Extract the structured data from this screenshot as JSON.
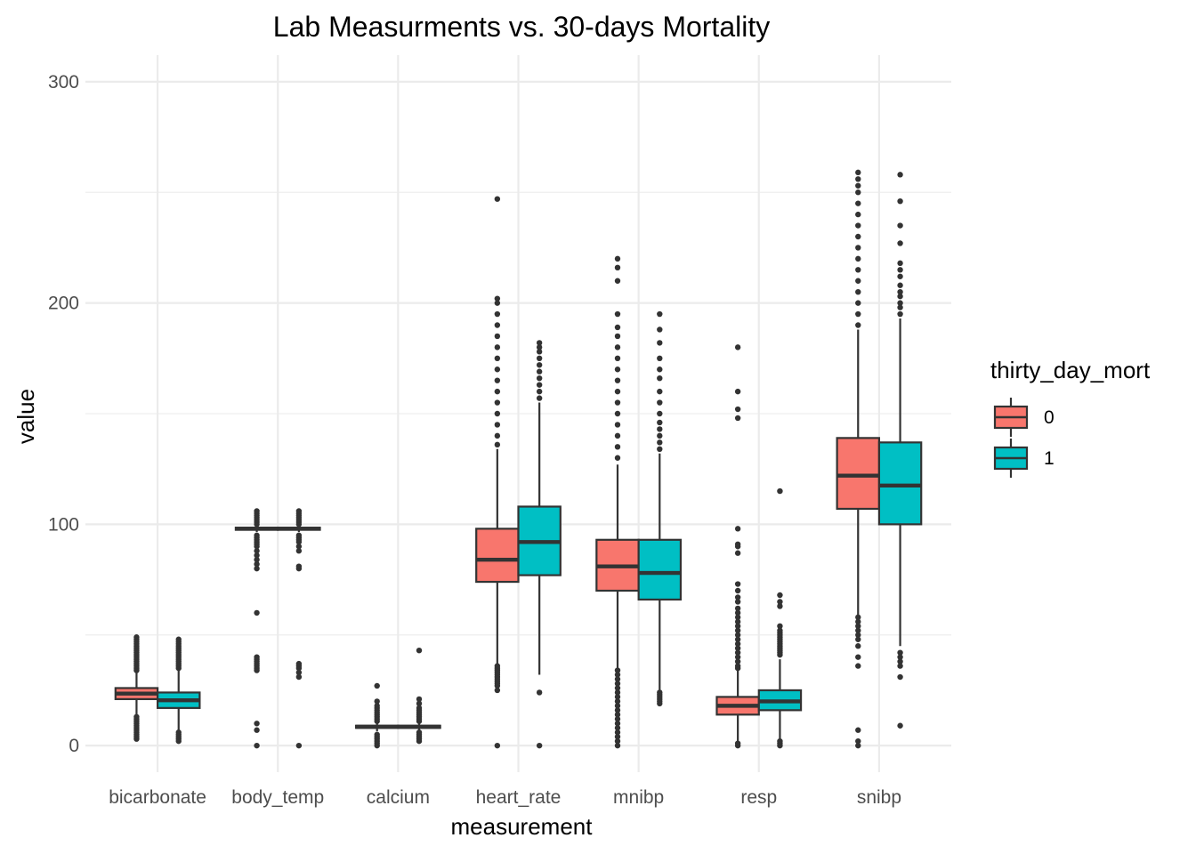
{
  "chart_data": {
    "type": "boxplot",
    "title": "Lab Measurments vs. 30-days Mortality",
    "xlabel": "measurement",
    "ylabel": "value",
    "ylim": [
      -12,
      312
    ],
    "yticks": [
      0,
      100,
      200,
      300
    ],
    "grid": true,
    "legend": {
      "title": "thirty_day_mort",
      "position": "right"
    },
    "categories": [
      "bicarbonate",
      "body_temp",
      "calcium",
      "heart_rate",
      "mnibp",
      "resp",
      "snibp"
    ],
    "series": [
      {
        "name": "0",
        "color": "#F8766D",
        "boxes": [
          {
            "min": 14,
            "q1": 21,
            "median": 23.5,
            "q3": 26,
            "max": 33,
            "outliers": [
              3,
              4,
              5,
              6,
              7,
              8,
              9,
              10,
              11,
              12,
              13,
              34,
              35,
              36,
              37,
              38,
              39,
              40,
              41,
              42,
              43,
              44,
              45,
              46,
              47,
              48,
              49
            ]
          },
          {
            "min": 96.5,
            "q1": 97.5,
            "median": 98,
            "q3": 98.5,
            "max": 99.5,
            "outliers": [
              0,
              7,
              10,
              34,
              35,
              36,
              37,
              38,
              39,
              40,
              60,
              80,
              82,
              84,
              86,
              88,
              90,
              91,
              92,
              93,
              94,
              95,
              100,
              101,
              102,
              103,
              104,
              105,
              106
            ]
          },
          {
            "min": 6.5,
            "q1": 8,
            "median": 8.5,
            "q3": 9,
            "max": 10.5,
            "outliers": [
              0,
              1,
              2,
              3,
              4,
              5,
              11,
              12,
              13,
              14,
              15,
              16,
              17,
              18,
              20,
              27
            ]
          },
          {
            "min": 37,
            "q1": 74,
            "median": 84,
            "q3": 98,
            "max": 134,
            "outliers": [
              0,
              25,
              27,
              28,
              29,
              30,
              31,
              32,
              33,
              34,
              35,
              36,
              136,
              140,
              145,
              150,
              155,
              160,
              165,
              170,
              175,
              180,
              185,
              190,
              195,
              200,
              202,
              247
            ]
          },
          {
            "min": 35,
            "q1": 70,
            "median": 81,
            "q3": 93,
            "max": 127,
            "outliers": [
              0,
              2,
              4,
              6,
              8,
              10,
              12,
              14,
              16,
              18,
              20,
              22,
              24,
              26,
              28,
              30,
              32,
              34,
              130,
              135,
              140,
              145,
              150,
              155,
              160,
              165,
              170,
              175,
              180,
              185,
              189,
              195,
              210,
              216,
              220
            ]
          },
          {
            "min": 2,
            "q1": 14,
            "median": 18,
            "q3": 22,
            "max": 34,
            "outliers": [
              0,
              1,
              35,
              36,
              38,
              40,
              42,
              44,
              46,
              48,
              50,
              52,
              54,
              56,
              58,
              60,
              62,
              65,
              67,
              70,
              73,
              87,
              90,
              91,
              98,
              148,
              152,
              160,
              180
            ]
          },
          {
            "min": 59,
            "q1": 107,
            "median": 122,
            "q3": 139,
            "max": 188,
            "outliers": [
              0,
              2,
              7,
              36,
              40,
              45,
              48,
              50,
              52,
              54,
              56,
              58,
              190,
              195,
              200,
              205,
              210,
              215,
              220,
              225,
              230,
              235,
              240,
              245,
              250,
              253,
              256,
              259
            ]
          }
        ]
      },
      {
        "name": "1",
        "color": "#00BFC4",
        "boxes": [
          {
            "min": 7,
            "q1": 17,
            "median": 20.5,
            "q3": 24,
            "max": 34,
            "outliers": [
              2,
              3,
              4,
              5,
              6,
              35,
              36,
              37,
              38,
              39,
              40,
              41,
              42,
              43,
              44,
              45,
              46,
              47,
              48
            ]
          },
          {
            "min": 96.5,
            "q1": 97.5,
            "median": 98,
            "q3": 98.5,
            "max": 99.5,
            "outliers": [
              0,
              31,
              33,
              35,
              36,
              37,
              80,
              81,
              88,
              90,
              92,
              93,
              94,
              95,
              100,
              101,
              102,
              103,
              104,
              105,
              106
            ]
          },
          {
            "min": 6.5,
            "q1": 8,
            "median": 8.5,
            "q3": 9,
            "max": 10.5,
            "outliers": [
              2,
              3,
              4,
              5,
              6,
              11,
              12,
              13,
              14,
              15,
              16,
              17,
              19,
              21,
              43
            ]
          },
          {
            "min": 32,
            "q1": 77,
            "median": 92,
            "q3": 108,
            "max": 155,
            "outliers": [
              0,
              24,
              157,
              160,
              163,
              166,
              169,
              172,
              175,
              178,
              180,
              182
            ]
          },
          {
            "min": 25,
            "q1": 66,
            "median": 78,
            "q3": 93,
            "max": 132,
            "outliers": [
              19,
              20,
              21,
              22,
              23,
              24,
              134,
              137,
              140,
              143,
              146,
              150,
              155,
              160,
              166,
              170,
              175,
              182,
              188,
              195
            ]
          },
          {
            "min": 3,
            "q1": 16,
            "median": 20,
            "q3": 25,
            "max": 39,
            "outliers": [
              0,
              1,
              2,
              41,
              42,
              43,
              44,
              45,
              46,
              47,
              48,
              49,
              50,
              51,
              52,
              54,
              63,
              65,
              68,
              115
            ]
          },
          {
            "min": 45,
            "q1": 100,
            "median": 117.5,
            "q3": 137,
            "max": 193,
            "outliers": [
              9,
              31,
              36,
              38,
              40,
              42,
              195,
              198,
              200,
              203,
              205,
              208,
              212,
              215,
              218,
              227,
              235,
              246,
              258
            ]
          }
        ]
      }
    ]
  }
}
